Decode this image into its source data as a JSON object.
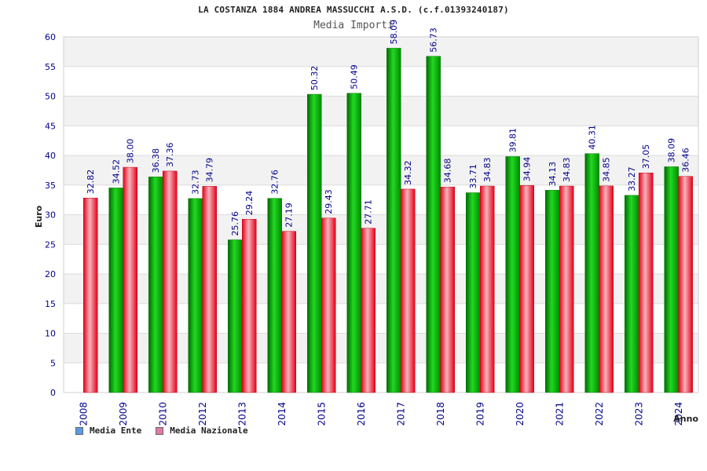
{
  "chart_data": {
    "type": "bar",
    "title": "LA COSTANZA 1884 ANDREA MASSUCCHI A.S.D. (c.f.01393240187)",
    "subtitle": "Media Importi",
    "xlabel": "Anno",
    "ylabel": "Euro",
    "ylim": [
      0,
      60
    ],
    "yticks": [
      0,
      5,
      10,
      15,
      20,
      25,
      30,
      35,
      40,
      45,
      50,
      55,
      60
    ],
    "grid": true,
    "legend_position": "bottom-left",
    "categories": [
      "2008",
      "2009",
      "2010",
      "2012",
      "2013",
      "2014",
      "2015",
      "2016",
      "2017",
      "2018",
      "2019",
      "2020",
      "2021",
      "2022",
      "2023",
      "2024"
    ],
    "series": [
      {
        "name": "Media Ente",
        "values": [
          null,
          34.52,
          36.38,
          32.73,
          25.76,
          32.76,
          50.32,
          50.49,
          58.09,
          56.73,
          33.71,
          39.81,
          34.13,
          40.31,
          33.27,
          38.09
        ],
        "labels": [
          "",
          "34.52",
          "36.38",
          "32.73",
          "25.76",
          "32.76",
          "50.32",
          "50.49",
          "58.09",
          "56.73",
          "33.71",
          "39.81",
          "34.13",
          "40.31",
          "33.27",
          "38.09"
        ],
        "bar_color": "#0aa80a",
        "legend_color": "#5b9be0"
      },
      {
        "name": "Media Nazionale",
        "values": [
          32.82,
          38.0,
          37.36,
          34.79,
          29.24,
          27.19,
          29.43,
          27.71,
          34.32,
          34.68,
          34.83,
          34.94,
          34.83,
          34.85,
          37.05,
          36.46
        ],
        "labels": [
          "32.82",
          "38.00",
          "37.36",
          "34.79",
          "29.24",
          "27.19",
          "29.43",
          "27.71",
          "34.32",
          "34.68",
          "34.83",
          "34.94",
          "34.83",
          "34.85",
          "37.05",
          "36.46"
        ],
        "bar_color": "#e8202a",
        "legend_color": "#e07aa8"
      }
    ]
  }
}
